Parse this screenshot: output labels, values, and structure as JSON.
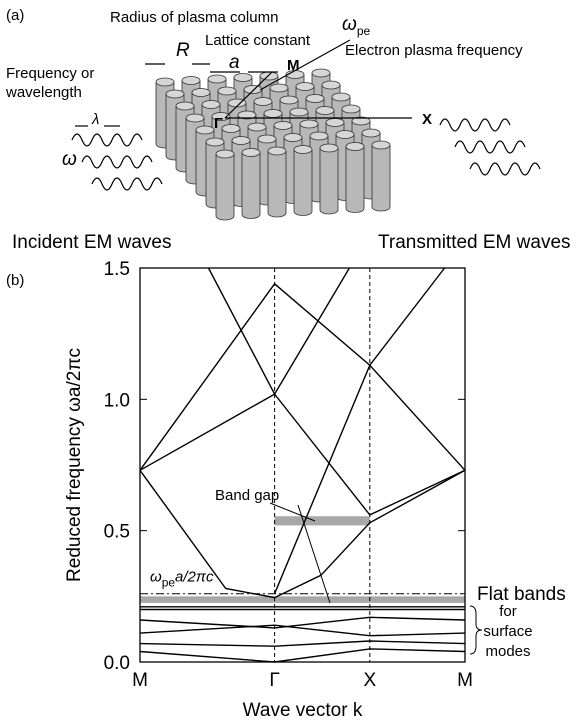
{
  "figure": {
    "panel_a_label": "(a)",
    "panel_b_label": "(b)",
    "radius_label": "Radius of plasma column",
    "radius_symbol": "R",
    "lattice_label": "Lattice constant",
    "lattice_symbol": "a",
    "plasma_symbol": "ω",
    "plasma_subscript": "pe",
    "plasma_label": "Electron plasma frequency",
    "freq_label_1": "Frequency or",
    "freq_label_2": "wavelength",
    "lambda": "λ",
    "omega": "ω",
    "point_m": "M",
    "point_gamma": "Γ",
    "point_x": "X",
    "incident": "Incident EM waves",
    "transmitted": "Transmitted EM waves"
  },
  "chart_data": {
    "type": "line",
    "ylabel": "Reduced frequency  ωa/2πc",
    "xlabel": "Wave vector  k",
    "xlim": [
      0,
      3.414
    ],
    "xticks": [
      {
        "value": 0,
        "label": "M"
      },
      {
        "value": 1.414,
        "label": "Γ"
      },
      {
        "value": 2.414,
        "label": "X"
      },
      {
        "value": 3.414,
        "label": "M"
      }
    ],
    "ylim": [
      0,
      1.5
    ],
    "yticks": [
      {
        "value": 0,
        "label": "0.0"
      },
      0.5,
      {
        "value": 1,
        "label": "1.0"
      },
      1.5
    ],
    "xgrid": "dashed",
    "series": [
      {
        "color": "#000",
        "x": [
          0,
          0.9,
          1.414,
          1.9,
          2.414,
          3.414
        ],
        "values": [
          0.73,
          0.28,
          0.245,
          0.33,
          0.53,
          0.73
        ]
      },
      {
        "color": "#000",
        "x": [
          0,
          1.414,
          2.414,
          3.414
        ],
        "values": [
          0.73,
          1.02,
          0.56,
          0.73
        ]
      },
      {
        "color": "#000",
        "x": [
          0,
          1.414,
          2.414,
          3.414
        ],
        "values": [
          0.73,
          1.44,
          1.13,
          0.73
        ]
      },
      {
        "color": "#000",
        "x": [
          0.72,
          1.414,
          2.2
        ],
        "values": [
          1.5,
          1.02,
          1.5
        ]
      },
      {
        "color": "#000",
        "x": [
          1.414,
          2.414,
          3.2
        ],
        "values": [
          0.26,
          1.13,
          1.5
        ]
      },
      {
        "color": "#000",
        "x": [
          0,
          3.414
        ],
        "values": [
          0.2,
          0.2
        ]
      },
      {
        "color": "#000",
        "x": [
          0,
          3.414
        ],
        "values": [
          0.21,
          0.21
        ]
      },
      {
        "color": "#000",
        "x": [
          0,
          1.414,
          2.414,
          3.414
        ],
        "values": [
          0.16,
          0.13,
          0.17,
          0.16
        ]
      },
      {
        "color": "#000",
        "x": [
          0,
          1.414,
          2.414,
          3.414
        ],
        "values": [
          0.11,
          0.14,
          0.1,
          0.11
        ]
      },
      {
        "color": "#000",
        "x": [
          0,
          1.414,
          2.414,
          3.414
        ],
        "values": [
          0.07,
          0.06,
          0.08,
          0.07
        ]
      },
      {
        "color": "#000",
        "x": [
          0,
          1.414,
          2.414,
          3.414
        ],
        "values": [
          0.04,
          0.0,
          0.05,
          0.04
        ]
      }
    ],
    "plasma_line": {
      "value": 0.26,
      "label_symbol": "ω",
      "label_subscript": "pe",
      "label_rest": "a/2πc"
    },
    "band_gap": {
      "label": "Band gap",
      "x": [
        1.414,
        2.414
      ],
      "y": [
        0.52,
        0.555
      ]
    },
    "flat_bands": {
      "label": "Flat bands",
      "y": [
        0.225,
        0.25
      ]
    },
    "surface_modes": [
      "for",
      "surface",
      "modes"
    ]
  }
}
